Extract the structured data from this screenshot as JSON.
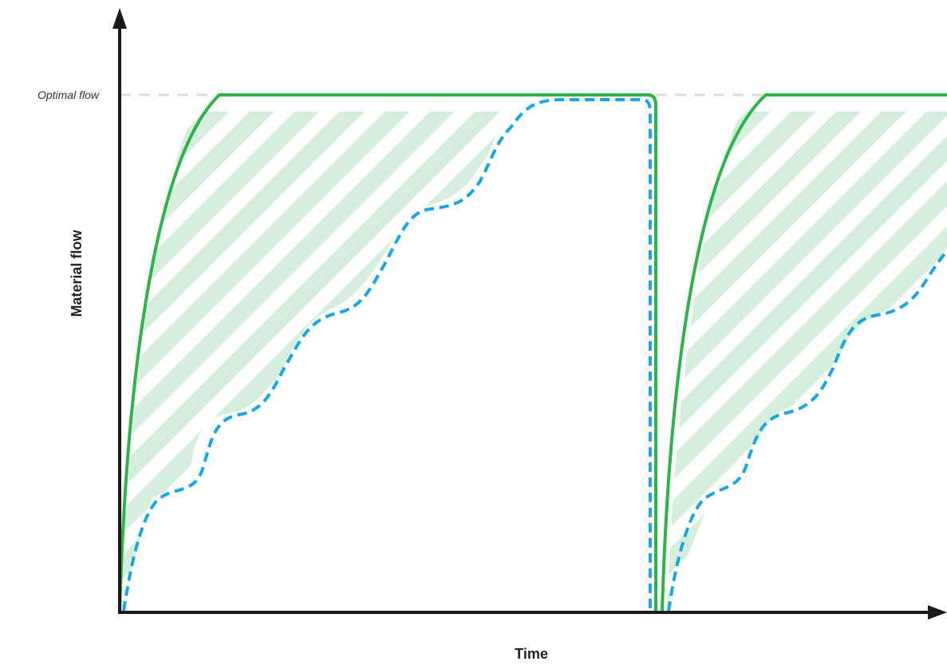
{
  "diagram": {
    "y_axis_label": "Material flow",
    "x_axis_label": "Time",
    "reference_line_label": "Optimal flow"
  },
  "colors": {
    "background": "#ffffff",
    "axis": "#1a1a1a",
    "optimal_curve": "#2db34a",
    "actual_curve": "#1aa6e0",
    "gap_hatch": "#d5efdc",
    "reference_line": "#dddddd"
  },
  "legend": [],
  "series": [
    {
      "role": "optimal",
      "style": "solid",
      "color_key": "optimal_curve"
    },
    {
      "role": "actual",
      "style": "dashed",
      "color_key": "actual_curve"
    }
  ]
}
